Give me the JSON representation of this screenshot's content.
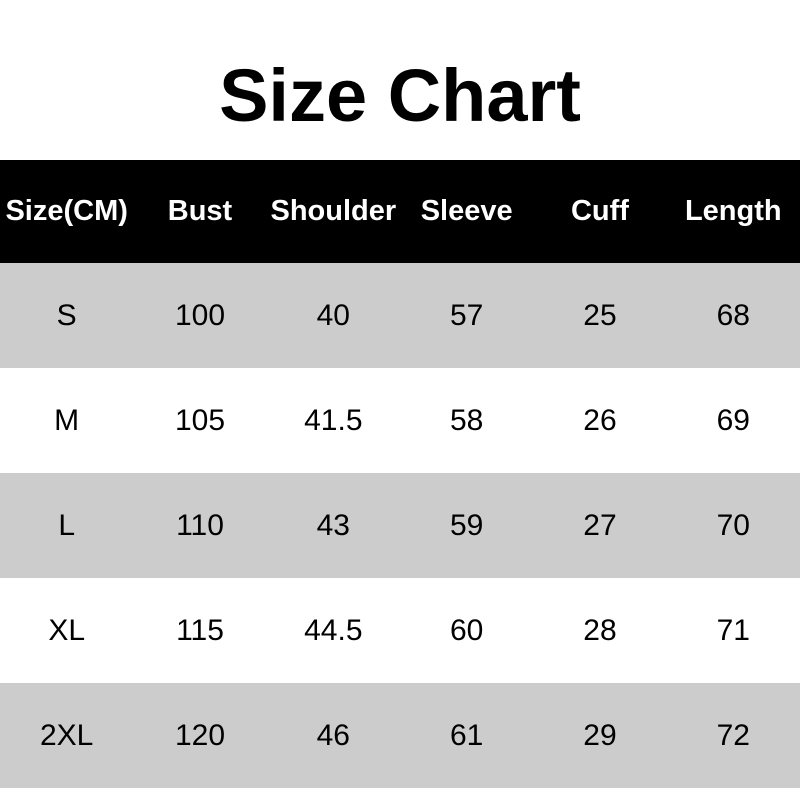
{
  "title": "Size Chart",
  "table": {
    "headers": [
      "Size(CM)",
      "Bust",
      "Shoulder",
      "Sleeve",
      "Cuff",
      "Length"
    ],
    "rows": [
      [
        "S",
        "100",
        "40",
        "57",
        "25",
        "68"
      ],
      [
        "M",
        "105",
        "41.5",
        "58",
        "26",
        "69"
      ],
      [
        "L",
        "110",
        "43",
        "59",
        "27",
        "70"
      ],
      [
        "XL",
        "115",
        "44.5",
        "60",
        "28",
        "71"
      ],
      [
        "2XL",
        "120",
        "46",
        "61",
        "29",
        "72"
      ]
    ]
  },
  "colors": {
    "page_bg": "#ffffff",
    "header_bg": "#000000",
    "header_text": "#ffffff",
    "row_even_bg": "#cccccc",
    "row_odd_bg": "#ffffff",
    "body_text": "#000000"
  },
  "chart_data": {
    "type": "table",
    "title": "Size Chart",
    "unit": "CM",
    "columns": [
      "Size(CM)",
      "Bust",
      "Shoulder",
      "Sleeve",
      "Cuff",
      "Length"
    ],
    "rows": [
      {
        "size": "S",
        "bust": 100,
        "shoulder": 40,
        "sleeve": 57,
        "cuff": 25,
        "length": 68
      },
      {
        "size": "M",
        "bust": 105,
        "shoulder": 41.5,
        "sleeve": 58,
        "cuff": 26,
        "length": 69
      },
      {
        "size": "L",
        "bust": 110,
        "shoulder": 43,
        "sleeve": 59,
        "cuff": 27,
        "length": 70
      },
      {
        "size": "XL",
        "bust": 115,
        "shoulder": 44.5,
        "sleeve": 60,
        "cuff": 28,
        "length": 71
      },
      {
        "size": "2XL",
        "bust": 120,
        "shoulder": 46,
        "sleeve": 61,
        "cuff": 29,
        "length": 72
      }
    ]
  }
}
